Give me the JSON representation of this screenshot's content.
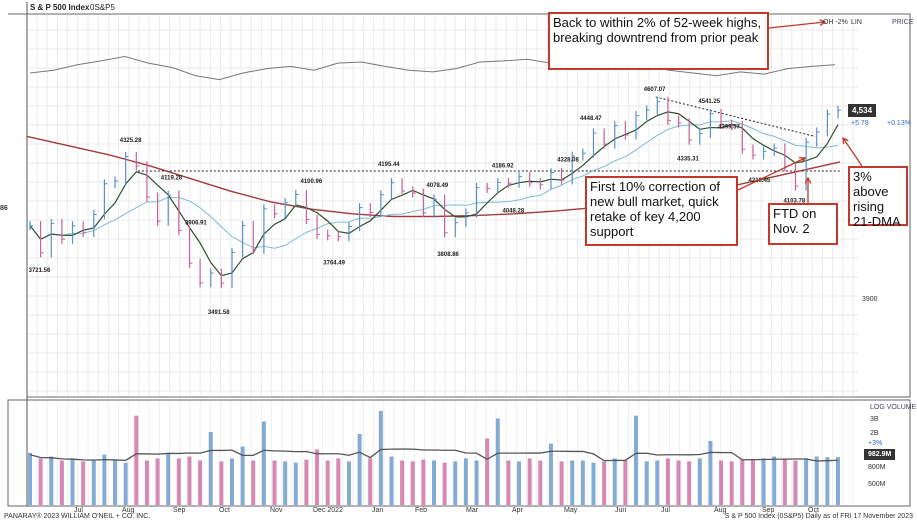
{
  "header": {
    "title": "S & P 500 Index",
    "symbol": "0S&P5",
    "scale_mode": "OH -2%",
    "scale_type": "LIN",
    "panel": "PRICE"
  },
  "price_tag": {
    "last": "4,534",
    "change": "+5.78",
    "change_pct": "+0.13%"
  },
  "left_cut_label": "86",
  "price_axis_label": "3900",
  "volume_panel": {
    "title": "LOG VOLUME",
    "ticks": [
      "3B",
      "2B",
      "800M",
      "500M"
    ],
    "change_pct": "+3%",
    "avg_tag": "982.9M"
  },
  "x_labels": [
    "Jul",
    "Aug",
    "Sep",
    "Oct",
    "Nov",
    "Dec 2022",
    "Jan",
    "Feb",
    "Mar",
    "Apr",
    "May",
    "Jun",
    "Jul",
    "Aug",
    "Sep",
    "Oct"
  ],
  "footer": {
    "left": "PANARAY® 2023 WILLIAM O'NEIL + CO. INC.",
    "right": "S & P 500 Index (0S&P5) Daily as of FRI 17 November 2023"
  },
  "annotations": [
    {
      "text": "Back to within 2% of 52-week highs, breaking downtrend from prior peak"
    },
    {
      "text": "First 10% correction of new bull market, quick retake of key 4,200 support"
    },
    {
      "text": "FTD on Nov. 2"
    },
    {
      "text": "3% above rising 21-DMA"
    }
  ],
  "colors": {
    "up": "#5b8fc7",
    "down": "#c9609a",
    "ma21": "#2f4f2f",
    "ma50": "#7fbcd2",
    "ma200": "#a33a3a",
    "rs": "#777777",
    "note_border": "#c0392b"
  },
  "chart_data": {
    "type": "ohlc-line",
    "title": "S & P 500 Index",
    "start_date": "2022-06-10",
    "frequency": "weekly",
    "closes": [
      3900,
      3750,
      3911,
      3825,
      3899,
      3863,
      3961,
      4130,
      4145,
      4280,
      4228,
      4057,
      3924,
      4067,
      3873,
      3693,
      3585,
      3639,
      3583,
      3752,
      3901,
      3770,
      3992,
      3965,
      4026,
      4071,
      3934,
      3852,
      3844,
      3839,
      3895,
      3999,
      3972,
      4070,
      4136,
      4090,
      4079,
      3970,
      4045,
      3861,
      3916,
      3970,
      4109,
      4105,
      4137,
      4133,
      4169,
      4136,
      4124,
      4192,
      4151,
      4282,
      4298,
      4409,
      4348,
      4450,
      4398,
      4505,
      4536,
      4582,
      4478,
      4464,
      4370,
      4406,
      4516,
      4457,
      4450,
      4320,
      4288,
      4308,
      4327,
      4224,
      4117,
      4358,
      4415,
      4514,
      4534
    ],
    "ma200": [
      4390,
      4340,
      4290,
      4230,
      4160,
      4090,
      4030,
      3990,
      3965,
      3950,
      3950,
      3955,
      3965,
      3980,
      4000,
      4030,
      4060,
      4100,
      4150,
      4200,
      4250
    ],
    "rs_line": [
      40,
      45,
      55,
      62,
      70,
      58,
      50,
      35,
      28,
      40,
      48,
      52,
      45,
      58,
      60,
      52,
      45,
      42,
      48,
      60,
      62,
      65,
      58,
      55,
      50,
      48,
      52,
      45,
      40,
      35,
      42,
      38,
      48,
      52,
      55
    ],
    "volume_m": [
      1100,
      950,
      1000,
      900,
      950,
      880,
      920,
      1050,
      900,
      850,
      2900,
      900,
      950,
      1100,
      950,
      1000,
      900,
      1900,
      880,
      950,
      1300,
      900,
      2500,
      900,
      880,
      850,
      920,
      1200,
      900,
      950,
      880,
      1800,
      950,
      3300,
      1000,
      900,
      880,
      920,
      900,
      850,
      880,
      950,
      900,
      1600,
      2700,
      900,
      880,
      950,
      900,
      1400,
      880,
      900,
      900,
      850,
      880,
      950,
      900,
      2900,
      880,
      900,
      950,
      900,
      880,
      950,
      1500,
      900,
      880,
      920,
      900,
      950,
      1000,
      950,
      900,
      950,
      1000,
      980,
      983
    ],
    "pivots": [
      {
        "label": "3721.56",
        "date": "2022-06-17",
        "value": 3721.56,
        "kind": "low"
      },
      {
        "label": "4325.28",
        "date": "2022-08-16",
        "value": 4325.28,
        "kind": "high"
      },
      {
        "label": "4119.28",
        "date": "2022-09-12",
        "value": 4119.28,
        "kind": "high"
      },
      {
        "label": "3906.91",
        "date": "2022-09-28",
        "value": 3906.91,
        "kind": "mid"
      },
      {
        "label": "3491.58",
        "date": "2022-10-13",
        "value": 3491.58,
        "kind": "low"
      },
      {
        "label": "4100.96",
        "date": "2022-12-13",
        "value": 4100.96,
        "kind": "high"
      },
      {
        "label": "3764.49",
        "date": "2022-12-28",
        "value": 3764.49,
        "kind": "low"
      },
      {
        "label": "4195.44",
        "date": "2023-02-02",
        "value": 4195.44,
        "kind": "high"
      },
      {
        "label": "4078.49",
        "date": "2023-03-06",
        "value": 4078.49,
        "kind": "high"
      },
      {
        "label": "3808.86",
        "date": "2023-03-13",
        "value": 3808.86,
        "kind": "low"
      },
      {
        "label": "4186.92",
        "date": "2023-04-18",
        "value": 4186.92,
        "kind": "high"
      },
      {
        "label": "4048.28",
        "date": "2023-04-25",
        "value": 4048.28,
        "kind": "low"
      },
      {
        "label": "4328.08",
        "date": "2023-05-31",
        "value": 4328.08,
        "kind": "low"
      },
      {
        "label": "4448.47",
        "date": "2023-06-15",
        "value": 4448.47,
        "kind": "high"
      },
      {
        "label": "4607.07",
        "date": "2023-07-27",
        "value": 4607.07,
        "kind": "high"
      },
      {
        "label": "4335.31",
        "date": "2023-08-18",
        "value": 4335.31,
        "kind": "low"
      },
      {
        "label": "4541.25",
        "date": "2023-09-01",
        "value": 4541.25,
        "kind": "high"
      },
      {
        "label": "4399.57",
        "date": "2023-09-14",
        "value": 4399.57,
        "kind": "high"
      },
      {
        "label": "4216.45",
        "date": "2023-10-04",
        "value": 4216.45,
        "kind": "low"
      },
      {
        "label": "4103.78",
        "date": "2023-10-27",
        "value": 4103.78,
        "kind": "low"
      }
    ],
    "support_level": 4200,
    "downtrend_line": [
      {
        "date": "2023-07-27",
        "value": 4607.07
      },
      {
        "date": "2023-11-09",
        "value": 4390
      }
    ]
  }
}
